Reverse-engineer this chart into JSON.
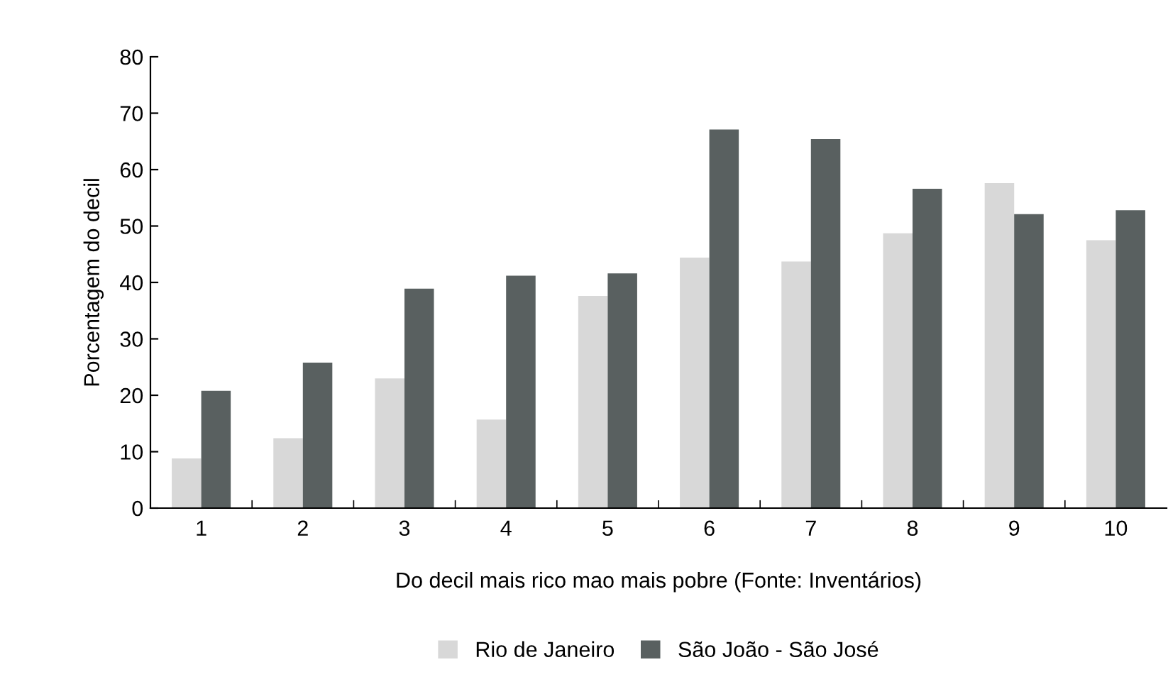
{
  "chart_data": {
    "type": "bar",
    "xlabel": "Do decil mais rico mao mais pobre (Fonte: Inventários)",
    "ylabel": "Porcentagem do decil",
    "categories": [
      "1",
      "2",
      "3",
      "4",
      "5",
      "6",
      "7",
      "8",
      "9",
      "10"
    ],
    "series": [
      {
        "name": "Rio de Janeiro",
        "color": "#d8d8d8",
        "values": [
          8.8,
          12.4,
          23.0,
          15.7,
          37.6,
          44.4,
          43.7,
          48.7,
          57.6,
          47.5
        ]
      },
      {
        "name": "São João - São José",
        "color": "#596060",
        "values": [
          20.8,
          25.8,
          38.9,
          41.2,
          41.6,
          67.1,
          65.4,
          56.6,
          52.1,
          52.8
        ]
      }
    ],
    "ylim": [
      0,
      80
    ],
    "yticks": [
      0,
      10,
      20,
      30,
      40,
      50,
      60,
      70,
      80
    ],
    "grid": false,
    "legend": "bottom"
  }
}
